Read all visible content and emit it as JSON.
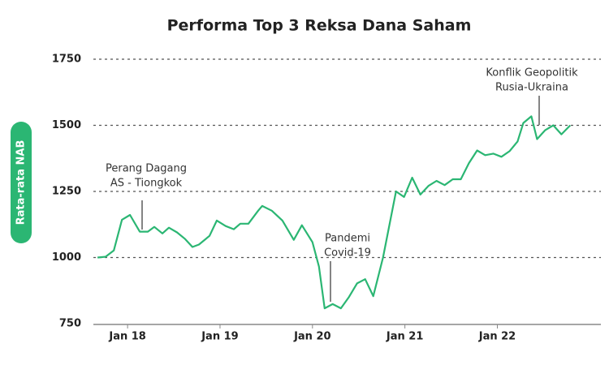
{
  "chart_data": {
    "type": "line",
    "title": "Performa Top 3 Reksa Dana Saham",
    "y_label": "Rata-rata NAB",
    "color": "#2bb673",
    "grid": true,
    "xlim": [
      2017.63,
      2023.12
    ],
    "xticks": [
      {
        "value": 2018,
        "label": "Jan 18"
      },
      {
        "value": 2019,
        "label": "Jan 19"
      },
      {
        "value": 2020,
        "label": "Jan 20"
      },
      {
        "value": 2021,
        "label": "Jan 21"
      },
      {
        "value": 2022,
        "label": "Jan 22"
      }
    ],
    "ylim": [
      750,
      1750
    ],
    "yticks": [
      750,
      1000,
      1250,
      1500,
      1750
    ],
    "x": [
      2017.675,
      2017.763,
      2017.851,
      2017.939,
      2018.026,
      2018.132,
      2018.219,
      2018.289,
      2018.377,
      2018.447,
      2018.535,
      2018.623,
      2018.702,
      2018.772,
      2018.886,
      2018.965,
      2019.061,
      2019.149,
      2019.219,
      2019.307,
      2019.412,
      2019.456,
      2019.561,
      2019.675,
      2019.798,
      2019.886,
      2020.0,
      2020.07,
      2020.132,
      2020.219,
      2020.307,
      2020.395,
      2020.482,
      2020.57,
      2020.658,
      2020.763,
      2020.904,
      2020.991,
      2021.079,
      2021.167,
      2021.254,
      2021.342,
      2021.43,
      2021.518,
      2021.605,
      2021.693,
      2021.781,
      2021.868,
      2021.956,
      2022.044,
      2022.132,
      2022.219,
      2022.281,
      2022.368,
      2022.43,
      2022.518,
      2022.605,
      2022.693,
      2022.789
    ],
    "values": [
      1000,
      1003,
      1027,
      1143,
      1161,
      1098,
      1098,
      1116,
      1091,
      1113,
      1095,
      1070,
      1040,
      1049,
      1082,
      1140,
      1119,
      1107,
      1128,
      1128,
      1177,
      1195,
      1177,
      1140,
      1067,
      1122,
      1058,
      966,
      808,
      824,
      808,
      851,
      902,
      918,
      854,
      1000,
      1250,
      1229,
      1302,
      1238,
      1271,
      1290,
      1274,
      1296,
      1296,
      1357,
      1405,
      1387,
      1393,
      1381,
      1402,
      1439,
      1509,
      1534,
      1448,
      1482,
      1500,
      1466,
      1500
    ],
    "annotations": [
      {
        "lines": [
          "Perang Dagang",
          "AS - Tiongkok"
        ]
      },
      {
        "lines": [
          "Pandemi",
          "Covid-19"
        ]
      },
      {
        "lines": [
          "Konflik Geopolitik",
          "Rusia-Ukraina"
        ]
      }
    ]
  }
}
